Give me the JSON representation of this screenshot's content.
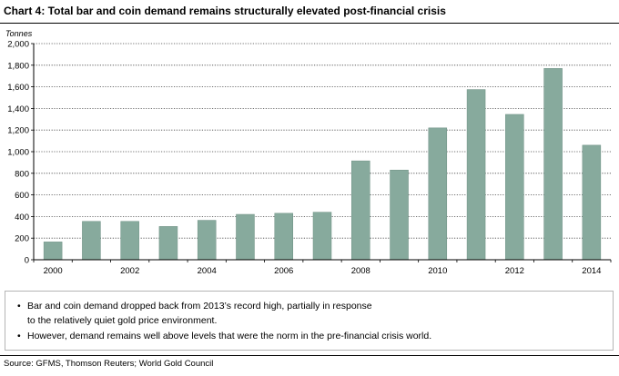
{
  "title": "Chart 4: Total bar and coin demand remains structurally elevated post-financial crisis",
  "unit_label": "Tonnes",
  "notes": [
    "Bar and coin demand dropped back from 2013’s record high, partially in response to the relatively quiet gold price environment.",
    "However, demand remains well above levels that were the norm in the pre-financial crisis world."
  ],
  "source": "Source: GFMS, Thomson Reuters; World Gold Council",
  "colors": {
    "bar": "#87aa9d",
    "bar_edge": "#6d8f83",
    "grid": "#444444"
  },
  "chart_data": {
    "type": "bar",
    "title": "Total bar and coin demand remains structurally elevated post-financial crisis",
    "ylabel": "Tonnes",
    "xlabel": "",
    "ylim": [
      0,
      2000
    ],
    "yticks": [
      0,
      200,
      400,
      600,
      800,
      1000,
      1200,
      1400,
      1600,
      1800,
      2000
    ],
    "ytick_labels": [
      "0",
      "200",
      "400",
      "600",
      "800",
      "1,000",
      "1,200",
      "1,400",
      "1,600",
      "1,800",
      "2,000"
    ],
    "categories": [
      "2000",
      "2001",
      "2002",
      "2003",
      "2004",
      "2005",
      "2006",
      "2007",
      "2008",
      "2009",
      "2010",
      "2011",
      "2012",
      "2013",
      "2014"
    ],
    "x_tick_labels": [
      "2000",
      "",
      "2002",
      "",
      "2004",
      "",
      "2006",
      "",
      "2008",
      "",
      "2010",
      "",
      "2012",
      "",
      "2014"
    ],
    "values": [
      165,
      355,
      355,
      308,
      365,
      420,
      430,
      440,
      915,
      830,
      1220,
      1575,
      1345,
      1770,
      1060
    ],
    "grid": true,
    "legend": "none"
  }
}
